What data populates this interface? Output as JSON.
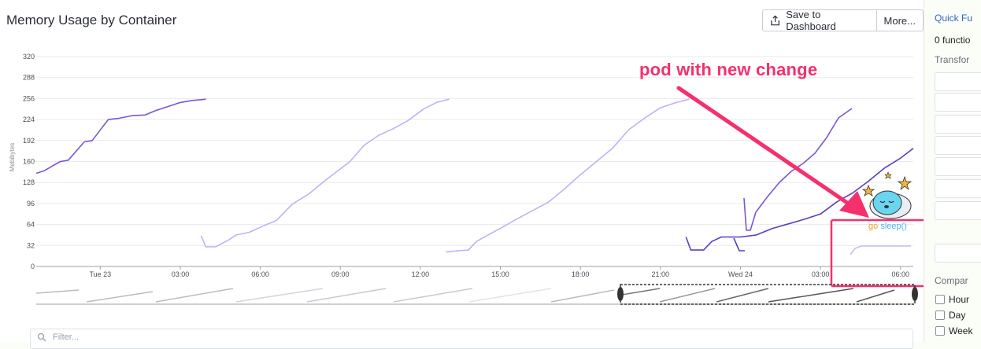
{
  "header": {
    "title": "Memory Usage by Container",
    "save_label": "Save to Dashboard",
    "more_label": "More..."
  },
  "annotation": {
    "text": "pod with new change",
    "color": "#f5306c",
    "sticker_text_go": "go",
    "sticker_text_fn": "sleep()"
  },
  "sidebar": {
    "link": "Quick Fu",
    "functions_count": "0 functio",
    "transform_label": "Transfor",
    "compare_label": "Compar",
    "checkboxes": [
      "Hour",
      "Day",
      "Week"
    ]
  },
  "filter": {
    "placeholder": "Filter..."
  },
  "chart_data": {
    "type": "line",
    "title": "",
    "ylabel": "Mebibytes",
    "ylim": [
      0,
      320
    ],
    "yticks": [
      0,
      32,
      64,
      96,
      128,
      160,
      192,
      224,
      256,
      288,
      320
    ],
    "xlim": [
      0,
      54.8
    ],
    "xticks": [
      {
        "x": 4,
        "label": "Tue 23"
      },
      {
        "x": 9,
        "label": "03:00"
      },
      {
        "x": 14,
        "label": "06:00"
      },
      {
        "x": 19,
        "label": "09:00"
      },
      {
        "x": 24,
        "label": "12:00"
      },
      {
        "x": 29,
        "label": "15:00"
      },
      {
        "x": 34,
        "label": "18:00"
      },
      {
        "x": 39,
        "label": "21:00"
      },
      {
        "x": 44,
        "label": "Wed 24"
      },
      {
        "x": 49,
        "label": "03:00"
      },
      {
        "x": 54,
        "label": "06:00"
      }
    ],
    "grid": true,
    "series": [
      {
        "color": "#7b55d8",
        "x": [
          0,
          0.5,
          1.5,
          2.0,
          3.0,
          3.5,
          4.5,
          5.2,
          6.0,
          6.8,
          7.5,
          8.0,
          8.5,
          9.0,
          9.7,
          10.6
        ],
        "y": [
          142,
          146,
          160,
          162,
          190,
          192,
          224,
          226,
          230,
          231,
          238,
          242,
          246,
          250,
          253,
          255
        ]
      },
      {
        "color": "#c2b0f5",
        "x": [
          10.3,
          10.6,
          11.2,
          12.0,
          12.5,
          13.3,
          14.2,
          15.0,
          16.0,
          17.0,
          18.0,
          18.8,
          19.6,
          20.5,
          21.4,
          22.3,
          23.2,
          24.2,
          25.0,
          25.8
        ],
        "y": [
          47,
          30,
          30,
          40,
          48,
          52,
          62,
          70,
          95,
          110,
          130,
          145,
          160,
          185,
          200,
          210,
          222,
          240,
          250,
          255
        ]
      },
      {
        "color": "#c2b0f5",
        "x": [
          25.6,
          26.4,
          27.0,
          27.5,
          28.0,
          29.0,
          30.0,
          31.0,
          32.0,
          33.0,
          34.0,
          35.0,
          36.0,
          37.0,
          38.0,
          39.0,
          40.0,
          40.8
        ],
        "y": [
          22,
          24,
          25,
          38,
          45,
          58,
          72,
          85,
          98,
          118,
          140,
          160,
          180,
          208,
          226,
          242,
          250,
          255
        ]
      },
      {
        "color": "#5e3cc0",
        "x": [
          40.6,
          40.9,
          41.7,
          42.2,
          42.8,
          44.0,
          45.0,
          46.0,
          47.0,
          48.0,
          49.0,
          50.0,
          51.0,
          52.0,
          53.0,
          54.0,
          54.8
        ],
        "y": [
          45,
          25,
          25,
          38,
          45,
          45,
          48,
          58,
          65,
          72,
          80,
          98,
          112,
          130,
          150,
          165,
          180
        ]
      }
    ]
  }
}
